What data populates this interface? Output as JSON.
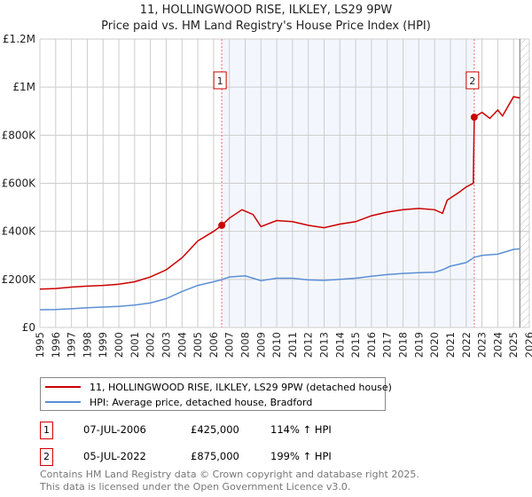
{
  "header": {
    "title": "11, HOLLINGWOOD RISE, ILKLEY, LS29 9PW",
    "subtitle": "Price paid vs. HM Land Registry's House Price Index (HPI)"
  },
  "chart_data": {
    "type": "line",
    "title": "11, HOLLINGWOOD RISE, ILKLEY, LS29 9PW",
    "subtitle": "Price paid vs. HM Land Registry's House Price Index (HPI)",
    "xlim": [
      1995,
      2026
    ],
    "ylim": [
      0,
      1200000
    ],
    "x_ticks": [
      "1995",
      "1996",
      "1997",
      "1998",
      "1999",
      "2000",
      "2001",
      "2002",
      "2003",
      "2004",
      "2005",
      "2006",
      "2007",
      "2008",
      "2009",
      "2010",
      "2011",
      "2012",
      "2013",
      "2014",
      "2015",
      "2016",
      "2017",
      "2018",
      "2019",
      "2020",
      "2021",
      "2022",
      "2023",
      "2024",
      "2025",
      "2026"
    ],
    "y_ticks": [
      {
        "v": 0,
        "label": "£0"
      },
      {
        "v": 200000,
        "label": "£200K"
      },
      {
        "v": 400000,
        "label": "£400K"
      },
      {
        "v": 600000,
        "label": "£600K"
      },
      {
        "v": 800000,
        "label": "£800K"
      },
      {
        "v": 1000000,
        "label": "£1M"
      },
      {
        "v": 1200000,
        "label": "£1.2M"
      }
    ],
    "grid": true,
    "shaded_range": [
      2006.52,
      2022.51
    ],
    "future_hatch_from": 2025.4,
    "series": [
      {
        "name": "11, HOLLINGWOOD RISE, ILKLEY, LS29 9PW (detached house)",
        "color": "#cc0000",
        "x": [
          1995,
          1996,
          1997,
          1998,
          1999,
          2000,
          2001,
          2002,
          2003,
          2004,
          2005,
          2006,
          2006.52,
          2007,
          2007.8,
          2008.5,
          2009,
          2010,
          2011,
          2012,
          2013,
          2014,
          2015,
          2016,
          2017,
          2018,
          2019,
          2020,
          2020.5,
          2020.8,
          2021.5,
          2022,
          2022.45,
          2022.51,
          2023,
          2023.5,
          2024,
          2024.3,
          2025,
          2025.4
        ],
        "values": [
          160000,
          162000,
          168000,
          172000,
          175000,
          180000,
          190000,
          210000,
          240000,
          290000,
          360000,
          400000,
          425000,
          455000,
          490000,
          470000,
          420000,
          445000,
          440000,
          425000,
          415000,
          430000,
          440000,
          465000,
          480000,
          490000,
          495000,
          490000,
          475000,
          530000,
          560000,
          585000,
          600000,
          875000,
          895000,
          870000,
          905000,
          880000,
          960000,
          955000
        ]
      },
      {
        "name": "HPI: Average price, detached house, Bradford",
        "color": "#5b8fd6",
        "x": [
          1995,
          1996,
          1997,
          1998,
          1999,
          2000,
          2001,
          2002,
          2003,
          2004,
          2005,
          2006,
          2006.52,
          2007,
          2008,
          2009,
          2010,
          2011,
          2012,
          2013,
          2014,
          2015,
          2016,
          2017,
          2018,
          2019,
          2020,
          2020.5,
          2021,
          2022,
          2022.51,
          2023,
          2024,
          2025,
          2025.4
        ],
        "values": [
          74000,
          75000,
          78000,
          82000,
          85000,
          88000,
          93000,
          102000,
          120000,
          150000,
          175000,
          190000,
          199000,
          210000,
          215000,
          195000,
          205000,
          205000,
          198000,
          196000,
          200000,
          205000,
          213000,
          220000,
          225000,
          228000,
          230000,
          240000,
          255000,
          270000,
          292000,
          300000,
          305000,
          325000,
          327000
        ]
      }
    ],
    "sales": [
      {
        "id": "1",
        "x": 2006.52,
        "value": 425000,
        "date": "07-JUL-2006",
        "price": "£425,000",
        "hpi": "114% ↑ HPI"
      },
      {
        "id": "2",
        "x": 2022.51,
        "value": 875000,
        "date": "05-JUL-2022",
        "price": "£875,000",
        "hpi": "199% ↑ HPI"
      }
    ]
  },
  "legend": {
    "red": "11, HOLLINGWOOD RISE, ILKLEY, LS29 9PW (detached house)",
    "blue": "HPI: Average price, detached house, Bradford"
  },
  "footer": {
    "line1": "Contains HM Land Registry data © Crown copyright and database right 2025.",
    "line2": "This data is licensed under the Open Government Licence v3.0."
  }
}
